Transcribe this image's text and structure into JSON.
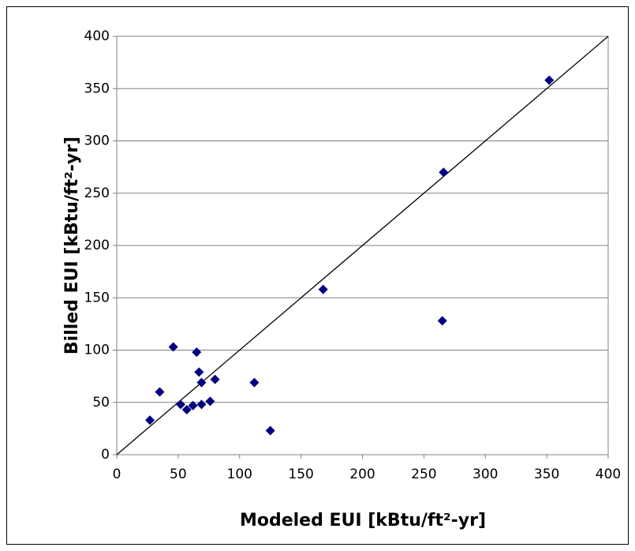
{
  "chart_data": {
    "type": "scatter",
    "x_label": "Modeled EUI [kBtu/ft²-yr]",
    "y_label": "Billed EUI [kBtu/ft²-yr]",
    "x": [
      27,
      35,
      46,
      52,
      57,
      62,
      65,
      67,
      69,
      69,
      76,
      80,
      112,
      125,
      168,
      265,
      266,
      352
    ],
    "values": [
      33,
      60,
      103,
      48,
      43,
      47,
      98,
      79,
      69,
      48,
      51,
      72,
      69,
      23,
      158,
      128,
      270,
      358
    ],
    "color": "#000080",
    "xlim": [
      0,
      400
    ],
    "xticks": [
      0,
      50,
      100,
      150,
      200,
      250,
      300,
      350,
      400
    ],
    "ylim": [
      0,
      400
    ],
    "yticks": [
      0,
      50,
      100,
      150,
      200,
      250,
      300,
      350,
      400
    ],
    "grid": true
  }
}
